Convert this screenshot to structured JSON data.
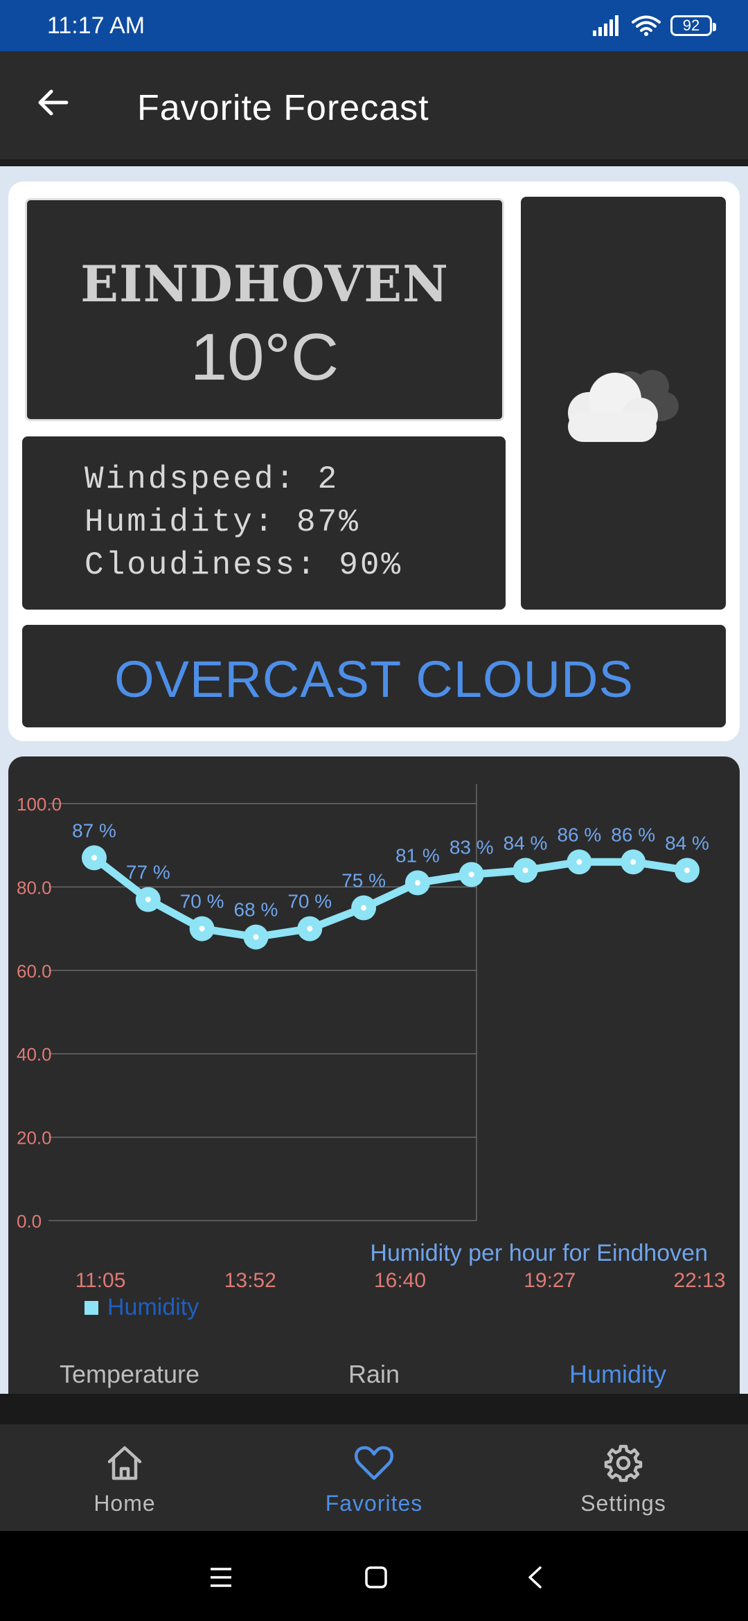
{
  "status_bar": {
    "time": "11:17 AM",
    "battery": "92"
  },
  "app_bar": {
    "title": "Favorite Forecast"
  },
  "weather": {
    "city": "EINDHOVEN",
    "temperature": "10°C",
    "windspeed": "Windspeed: 2",
    "humidity": "Humidity: 87%",
    "cloudiness": "Cloudiness: 90%",
    "condition": "OVERCAST CLOUDS",
    "icon": "overcast-clouds-icon"
  },
  "chart_data": {
    "type": "line",
    "title": "Humidity per hour for Eindhoven",
    "ylim": [
      0,
      100
    ],
    "y_ticks": [
      "100.0",
      "80.0",
      "60.0",
      "40.0",
      "20.0",
      "0.0"
    ],
    "x_tick_labels": [
      "11:05",
      "13:52",
      "16:40",
      "19:27",
      "22:13"
    ],
    "series": [
      {
        "name": "Humidity",
        "values": [
          87,
          77,
          70,
          68,
          70,
          75,
          81,
          83,
          84,
          86,
          86,
          84
        ],
        "labels": [
          "87 %",
          "77 %",
          "70 %",
          "68 %",
          "70 %",
          "75 %",
          "81 %",
          "83 %",
          "84 %",
          "86 %",
          "86 %",
          "84 %"
        ]
      }
    ],
    "legend": "bottom-left",
    "grid": true,
    "colors": {
      "line": "#8ee3f5",
      "label": "#6fa4ec",
      "axis_text": "#e07a75",
      "grid": "#6a6a6a",
      "legend_text": "#1f5fbf"
    }
  },
  "chart_tabs": [
    "Temperature",
    "Rain",
    "Humidity"
  ],
  "active_chart_tab": 2,
  "bottom_nav": {
    "items": [
      {
        "label": "Home",
        "icon": "home-icon"
      },
      {
        "label": "Favorites",
        "icon": "heart-icon"
      },
      {
        "label": "Settings",
        "icon": "gear-icon"
      }
    ],
    "active": 1
  }
}
